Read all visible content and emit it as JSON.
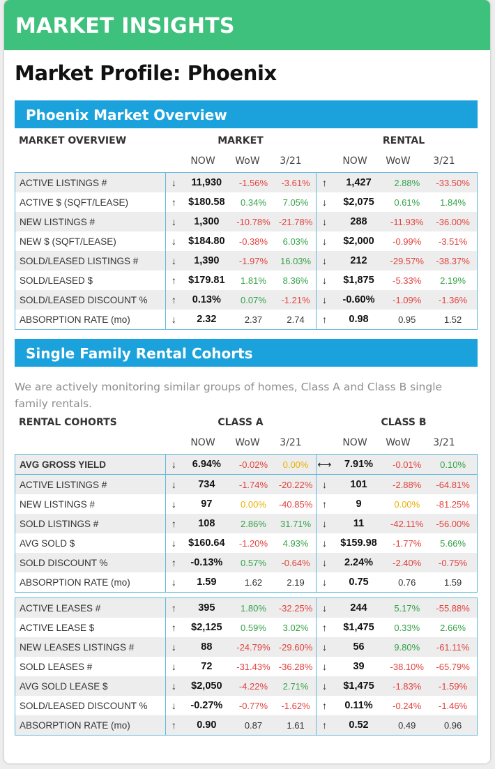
{
  "banner": "MARKET INSIGHTS",
  "page_title": "Market Profile: Phoenix",
  "overview": {
    "title": "Phoenix Market Overview",
    "label_header": "MARKET OVERVIEW",
    "group1": "MARKET",
    "group2": "RENTAL",
    "cols": [
      "NOW",
      "WoW",
      "3/21"
    ],
    "rows": [
      {
        "label": "ACTIVE LISTINGS #",
        "a1": "↓",
        "n1": "11,930",
        "w1": "-1.56%",
        "w1c": "neg",
        "m1": "-3.61%",
        "m1c": "neg",
        "a2": "↑",
        "n2": "1,427",
        "w2": "2.88%",
        "w2c": "pos",
        "m2": "-33.50%",
        "m2c": "neg"
      },
      {
        "label": "ACTIVE $ (SQFT/LEASE)",
        "a1": "↑",
        "n1": "$180.58",
        "w1": "0.34%",
        "w1c": "pos",
        "m1": "7.05%",
        "m1c": "pos",
        "a2": "↓",
        "n2": "$2,075",
        "w2": "0.61%",
        "w2c": "pos",
        "m2": "1.84%",
        "m2c": "pos"
      },
      {
        "label": "NEW LISTINGS #",
        "a1": "↓",
        "n1": "1,300",
        "w1": "-10.78%",
        "w1c": "neg",
        "m1": "-21.78%",
        "m1c": "neg",
        "a2": "↓",
        "n2": "288",
        "w2": "-11.93%",
        "w2c": "neg",
        "m2": "-36.00%",
        "m2c": "neg"
      },
      {
        "label": "NEW $ (SQFT/LEASE)",
        "a1": "↓",
        "n1": "$184.80",
        "w1": "-0.38%",
        "w1c": "neg",
        "m1": "6.03%",
        "m1c": "pos",
        "a2": "↓",
        "n2": "$2,000",
        "w2": "-0.99%",
        "w2c": "neg",
        "m2": "-3.51%",
        "m2c": "neg"
      },
      {
        "label": "SOLD/LEASED LISTINGS #",
        "a1": "↓",
        "n1": "1,390",
        "w1": "-1.97%",
        "w1c": "neg",
        "m1": "16.03%",
        "m1c": "pos",
        "a2": "↓",
        "n2": "212",
        "w2": "-29.57%",
        "w2c": "neg",
        "m2": "-38.37%",
        "m2c": "neg"
      },
      {
        "label": "SOLD/LEASED $",
        "a1": "↑",
        "n1": "$179.81",
        "w1": "1.81%",
        "w1c": "pos",
        "m1": "8.36%",
        "m1c": "pos",
        "a2": "↓",
        "n2": "$1,875",
        "w2": "-5.33%",
        "w2c": "neg",
        "m2": "2.19%",
        "m2c": "pos"
      },
      {
        "label": "SOLD/LEASED DISCOUNT %",
        "a1": "↑",
        "n1": "0.13%",
        "w1": "0.07%",
        "w1c": "pos",
        "m1": "-1.21%",
        "m1c": "neg",
        "a2": "↓",
        "n2": "-0.60%",
        "w2": "-1.09%",
        "w2c": "neg",
        "m2": "-1.36%",
        "m2c": "neg"
      },
      {
        "label": "ABSORPTION RATE (mo)",
        "a1": "↓",
        "n1": "2.32",
        "w1": "2.37",
        "w1c": "neu",
        "m1": "2.74",
        "m1c": "neu",
        "a2": "↑",
        "n2": "0.98",
        "w2": "0.95",
        "w2c": "neu",
        "m2": "1.52",
        "m2c": "neu"
      }
    ]
  },
  "cohorts": {
    "title": "Single Family Rental Cohorts",
    "description": "We are actively monitoring similar groups of homes, Class A and Class B single family rentals.",
    "label_header": "RENTAL COHORTS",
    "group1": "CLASS A",
    "group2": "CLASS B",
    "cols": [
      "NOW",
      "WoW",
      "3/21"
    ],
    "yield_row": {
      "label": "AVG GROSS YIELD",
      "a1": "↓",
      "n1": "6.94%",
      "w1": "-0.02%",
      "w1c": "neg",
      "m1": "0.00%",
      "m1c": "zero",
      "a2": "⟷",
      "n2": "7.91%",
      "w2": "-0.01%",
      "w2c": "neg",
      "m2": "0.10%",
      "m2c": "pos"
    },
    "sales_rows": [
      {
        "label": "ACTIVE LISTINGS #",
        "a1": "↓",
        "n1": "734",
        "w1": "-1.74%",
        "w1c": "neg",
        "m1": "-20.22%",
        "m1c": "neg",
        "a2": "↓",
        "n2": "101",
        "w2": "-2.88%",
        "w2c": "neg",
        "m2": "-64.81%",
        "m2c": "neg"
      },
      {
        "label": "NEW LISTINGS #",
        "a1": "↓",
        "n1": "97",
        "w1": "0.00%",
        "w1c": "zero",
        "m1": "-40.85%",
        "m1c": "neg",
        "a2": "↑",
        "n2": "9",
        "w2": "0.00%",
        "w2c": "zero",
        "m2": "-81.25%",
        "m2c": "neg"
      },
      {
        "label": "SOLD LISTINGS #",
        "a1": "↑",
        "n1": "108",
        "w1": "2.86%",
        "w1c": "pos",
        "m1": "31.71%",
        "m1c": "pos",
        "a2": "↓",
        "n2": "11",
        "w2": "-42.11%",
        "w2c": "neg",
        "m2": "-56.00%",
        "m2c": "neg"
      },
      {
        "label": "AVG SOLD $",
        "a1": "↓",
        "n1": "$160.64",
        "w1": "-1.20%",
        "w1c": "neg",
        "m1": "4.93%",
        "m1c": "pos",
        "a2": "↓",
        "n2": "$159.98",
        "w2": "-1.77%",
        "w2c": "neg",
        "m2": "5.66%",
        "m2c": "pos"
      },
      {
        "label": "SOLD DISCOUNT %",
        "a1": "↑",
        "n1": "-0.13%",
        "w1": "0.57%",
        "w1c": "pos",
        "m1": "-0.64%",
        "m1c": "neg",
        "a2": "↓",
        "n2": "2.24%",
        "w2": "-2.40%",
        "w2c": "neg",
        "m2": "-0.75%",
        "m2c": "neg"
      },
      {
        "label": "ABSORPTION RATE (mo)",
        "a1": "↓",
        "n1": "1.59",
        "w1": "1.62",
        "w1c": "neu",
        "m1": "2.19",
        "m1c": "neu",
        "a2": "↓",
        "n2": "0.75",
        "w2": "0.76",
        "w2c": "neu",
        "m2": "1.59",
        "m2c": "neu"
      }
    ],
    "lease_rows": [
      {
        "label": "ACTIVE LEASES #",
        "a1": "↑",
        "n1": "395",
        "w1": "1.80%",
        "w1c": "pos",
        "m1": "-32.25%",
        "m1c": "neg",
        "a2": "↓",
        "n2": "244",
        "w2": "5.17%",
        "w2c": "pos",
        "m2": "-55.88%",
        "m2c": "neg"
      },
      {
        "label": "ACTIVE LEASE $",
        "a1": "↑",
        "n1": "$2,125",
        "w1": "0.59%",
        "w1c": "pos",
        "m1": "3.02%",
        "m1c": "pos",
        "a2": "↑",
        "n2": "$1,475",
        "w2": "0.33%",
        "w2c": "pos",
        "m2": "2.66%",
        "m2c": "pos"
      },
      {
        "label": "NEW LEASES LISTINGS #",
        "a1": "↓",
        "n1": "88",
        "w1": "-24.79%",
        "w1c": "neg",
        "m1": "-29.60%",
        "m1c": "neg",
        "a2": "↓",
        "n2": "56",
        "w2": "9.80%",
        "w2c": "pos",
        "m2": "-61.11%",
        "m2c": "neg"
      },
      {
        "label": "SOLD LEASES #",
        "a1": "↓",
        "n1": "72",
        "w1": "-31.43%",
        "w1c": "neg",
        "m1": "-36.28%",
        "m1c": "neg",
        "a2": "↓",
        "n2": "39",
        "w2": "-38.10%",
        "w2c": "neg",
        "m2": "-65.79%",
        "m2c": "neg"
      },
      {
        "label": "AVG SOLD LEASE $",
        "a1": "↓",
        "n1": "$2,050",
        "w1": "-4.22%",
        "w1c": "neg",
        "m1": "2.71%",
        "m1c": "pos",
        "a2": "↓",
        "n2": "$1,475",
        "w2": "-1.83%",
        "w2c": "neg",
        "m2": "-1.59%",
        "m2c": "neg"
      },
      {
        "label": "SOLD/LEASED DISCOUNT %",
        "a1": "↓",
        "n1": "-0.27%",
        "w1": "-0.77%",
        "w1c": "neg",
        "m1": "-1.62%",
        "m1c": "neg",
        "a2": "↑",
        "n2": "0.11%",
        "w2": "-0.24%",
        "w2c": "neg",
        "m2": "-1.46%",
        "m2c": "neg"
      },
      {
        "label": "ABSORPTION RATE (mo)",
        "a1": "↑",
        "n1": "0.90",
        "w1": "0.87",
        "w1c": "neu",
        "m1": "1.61",
        "m1c": "neu",
        "a2": "↑",
        "n2": "0.52",
        "w2": "0.49",
        "w2c": "neu",
        "m2": "0.96",
        "m2c": "neu"
      }
    ]
  }
}
